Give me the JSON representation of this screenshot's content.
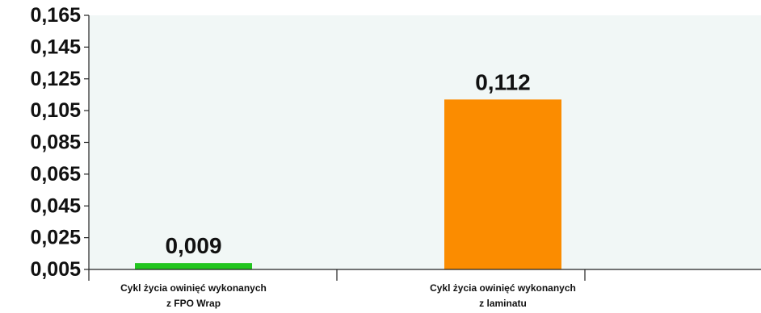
{
  "chart_data": {
    "type": "bar",
    "categories": [
      [
        "Cykl życia owinięć wykonanych",
        "z FPO Wrap"
      ],
      [
        "Cykl życia owinięć wykonanych",
        "z laminatu"
      ]
    ],
    "values": [
      0.009,
      0.112
    ],
    "value_labels": [
      "0,009",
      "0,112"
    ],
    "bar_colors": [
      "#22c51f",
      "#fb8c00"
    ],
    "plot_background": "#f1f7f6",
    "ylim": [
      0.005,
      0.165
    ],
    "yticks": [
      0.005,
      0.025,
      0.045,
      0.065,
      0.085,
      0.105,
      0.125,
      0.145,
      0.165
    ],
    "ytick_labels": [
      "0,005",
      "0,025",
      "0,045",
      "0,065",
      "0,085",
      "0,105",
      "0,125",
      "0,145",
      "0,165"
    ],
    "grid": false,
    "legend": "none",
    "title": "",
    "xlabel": "",
    "ylabel": ""
  }
}
